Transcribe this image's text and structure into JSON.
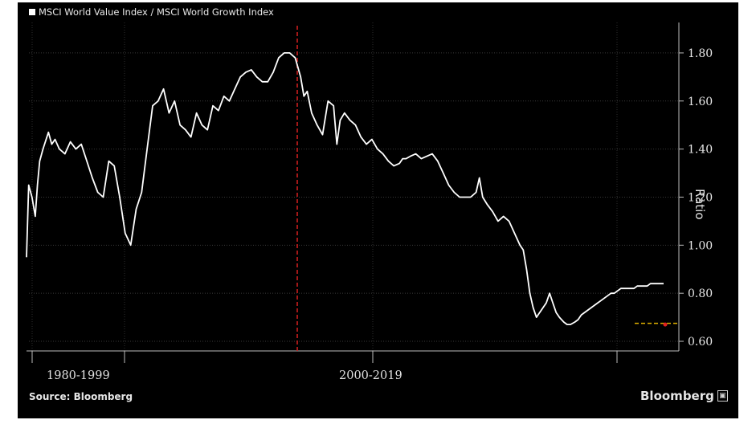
{
  "legend": {
    "label": "MSCI World Value Index / MSCI World Growth Index"
  },
  "footer": {
    "source": "Source: Bloomberg",
    "brand": "Bloomberg"
  },
  "chart_data": {
    "type": "line",
    "title": "",
    "ylabel": "Ratio",
    "ylim": [
      0.56,
      1.92
    ],
    "yticks": [
      "1.80",
      "1.60",
      "1.40",
      "1.20",
      "1.00",
      "0.80",
      "0.60"
    ],
    "ytick_values": [
      1.8,
      1.6,
      1.4,
      1.2,
      1.0,
      0.8,
      0.6
    ],
    "period_labels": [
      "1980-1999",
      "2000-2019"
    ],
    "series": [
      {
        "color": "#ffffff",
        "x": [
          1975.0,
          1975.2,
          1975.5,
          1975.8,
          1976.0,
          1976.2,
          1976.5,
          1977.0,
          1977.3,
          1977.6,
          1978.0,
          1978.5,
          1979.0,
          1979.5,
          1980.0,
          1980.5,
          1981.0,
          1981.5,
          1982.0,
          1982.5,
          1983.0,
          1983.5,
          1984.0,
          1984.5,
          1985.0,
          1985.5,
          1986.0,
          1986.5,
          1987.0,
          1987.5,
          1988.0,
          1988.5,
          1989.0,
          1989.5,
          1990.0,
          1990.5,
          1991.0,
          1991.5,
          1992.0,
          1992.5,
          1993.0,
          1993.5,
          1994.0,
          1994.5,
          1995.0,
          1995.5,
          1996.0,
          1996.5,
          1997.0,
          1997.5,
          1998.0,
          1998.5,
          1999.0,
          1999.5,
          2000.0,
          2000.3,
          2000.6,
          2001.0,
          2001.5,
          2002.0,
          2002.5,
          2003.0,
          2003.3,
          2003.6,
          2004.0,
          2004.5,
          2005.0,
          2005.5,
          2006.0,
          2006.5,
          2007.0,
          2007.5,
          2008.0,
          2008.5,
          2009.0,
          2009.3,
          2009.6,
          2010.0,
          2010.5,
          2011.0,
          2011.5,
          2012.0,
          2012.5,
          2013.0,
          2013.5,
          2014.0,
          2014.5,
          2015.0,
          2015.5,
          2016.0,
          2016.3,
          2016.6,
          2017.0,
          2017.5,
          2018.0,
          2018.5,
          2019.0,
          2019.5,
          2020.0,
          2020.3,
          2020.6,
          2020.9,
          2021.2,
          2021.5,
          2021.8,
          2022.1,
          2022.4,
          2022.7,
          2023.0,
          2023.3,
          2023.6,
          2024.0,
          2024.3,
          2024.6,
          2025.0,
          2025.3,
          2025.6,
          2025.9,
          2026.2,
          2026.5,
          2026.8,
          2027.1,
          2027.4,
          2027.7,
          2028.0,
          2028.3,
          2028.6,
          2028.9,
          2029.2,
          2029.5,
          2029.8,
          2030.1,
          2030.4,
          2030.7,
          2031.0,
          2031.3,
          2031.6,
          2031.9,
          2032.2,
          2032.5,
          2032.8,
          2033.1
        ],
        "y": [
          0.95,
          1.25,
          1.2,
          1.12,
          1.25,
          1.35,
          1.4,
          1.47,
          1.42,
          1.44,
          1.4,
          1.38,
          1.43,
          1.4,
          1.42,
          1.35,
          1.28,
          1.22,
          1.2,
          1.35,
          1.33,
          1.2,
          1.05,
          1.0,
          1.15,
          1.22,
          1.4,
          1.58,
          1.6,
          1.65,
          1.55,
          1.6,
          1.5,
          1.48,
          1.45,
          1.55,
          1.5,
          1.48,
          1.58,
          1.56,
          1.62,
          1.6,
          1.65,
          1.7,
          1.72,
          1.73,
          1.7,
          1.68,
          1.68,
          1.72,
          1.78,
          1.8,
          1.8,
          1.78,
          1.7,
          1.62,
          1.64,
          1.55,
          1.5,
          1.46,
          1.6,
          1.58,
          1.42,
          1.52,
          1.55,
          1.52,
          1.5,
          1.45,
          1.42,
          1.44,
          1.4,
          1.38,
          1.35,
          1.33,
          1.34,
          1.36,
          1.36,
          1.37,
          1.38,
          1.36,
          1.37,
          1.38,
          1.35,
          1.3,
          1.25,
          1.22,
          1.2,
          1.2,
          1.2,
          1.22,
          1.28,
          1.2,
          1.17,
          1.14,
          1.1,
          1.12,
          1.1,
          1.05,
          1.0,
          0.98,
          0.9,
          0.8,
          0.74,
          0.7,
          0.72,
          0.74,
          0.76,
          0.8,
          0.76,
          0.72,
          0.7,
          0.68,
          0.67,
          0.67,
          0.68,
          0.69,
          0.71,
          0.72,
          0.73,
          0.74,
          0.75,
          0.76,
          0.77,
          0.78,
          0.79,
          0.8,
          0.8,
          0.81,
          0.82,
          0.82,
          0.82,
          0.82,
          0.82,
          0.83,
          0.83,
          0.83,
          0.83,
          0.84,
          0.84,
          0.84,
          0.84,
          0.84
        ]
      }
    ],
    "markers": [
      {
        "type": "vertical-dashed-line",
        "color": "#cc1f1f"
      },
      {
        "type": "horizontal-dashed-line",
        "color": "#e0b000",
        "value": 0.675
      },
      {
        "type": "point",
        "color": "#e02020",
        "value": 0.67
      }
    ]
  }
}
